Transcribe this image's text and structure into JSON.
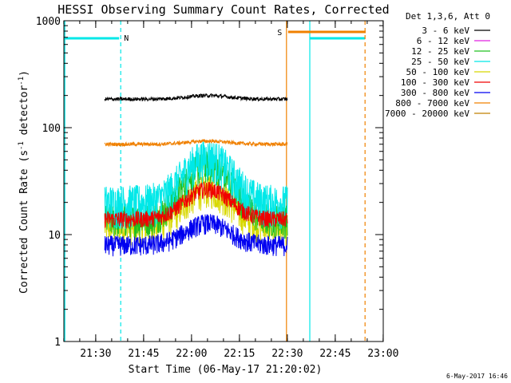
{
  "chart_data": {
    "type": "line",
    "title": "HESSI Observing Summary Count Rates, Corrected",
    "xlabel": "Start Time (06-May-17 21:20:02)",
    "ylabel_main": "Corrected Count Rate (s",
    "ylabel_sup1": "-1",
    "ylabel_mid": " detector",
    "ylabel_sup2": "-1",
    "ylabel_end": ")",
    "y_scale": "log",
    "ylim": [
      1,
      1000
    ],
    "y_ticks": [
      "1",
      "10",
      "100",
      "1000"
    ],
    "x_range_minutes": [
      0,
      100
    ],
    "x_ticks": [
      {
        "label": "21:30",
        "min": 9.97
      },
      {
        "label": "21:45",
        "min": 24.97
      },
      {
        "label": "22:00",
        "min": 39.97
      },
      {
        "label": "22:15",
        "min": 54.97
      },
      {
        "label": "22:30",
        "min": 69.97
      },
      {
        "label": "22:45",
        "min": 84.97
      },
      {
        "label": "23:00",
        "min": 99.97
      }
    ],
    "legend_title": "Det 1,3,6, Att 0",
    "legend_placement": "right",
    "series": [
      {
        "name": "3 - 6 keV",
        "color": "#000000",
        "start_min": 12.8,
        "end_min": 70.0,
        "base": 185,
        "bump": 1.08,
        "noise": 0.04
      },
      {
        "name": "6 - 12 keV",
        "color": "#e020e0",
        "start_min": 12.8,
        "end_min": 70.0,
        "base": 0,
        "bump": 1,
        "noise": 0
      },
      {
        "name": "12 - 25 keV",
        "color": "#20c020",
        "start_min": 12.8,
        "end_min": 70.0,
        "base": 14,
        "bump": 3.2,
        "noise": 0.35
      },
      {
        "name": "25 - 50 keV",
        "color": "#00e8e8",
        "start_min": 12.8,
        "end_min": 70.0,
        "base": 20,
        "bump": 2.7,
        "noise": 0.45
      },
      {
        "name": "50 - 100 keV",
        "color": "#d8d800",
        "start_min": 12.8,
        "end_min": 70.0,
        "base": 12,
        "bump": 2.2,
        "noise": 0.35
      },
      {
        "name": "100 - 300 keV",
        "color": "#f00000",
        "start_min": 12.8,
        "end_min": 70.0,
        "base": 14,
        "bump": 1.9,
        "noise": 0.18
      },
      {
        "name": "300 - 800 keV",
        "color": "#0000f0",
        "start_min": 12.8,
        "end_min": 70.0,
        "base": 8,
        "bump": 1.6,
        "noise": 0.22
      },
      {
        "name": "800 - 7000 keV",
        "color": "#f08000",
        "start_min": 12.8,
        "end_min": 70.0,
        "base": 70,
        "bump": 1.07,
        "noise": 0.04
      },
      {
        "name": "7000 - 20000 keV",
        "color": "#c08000",
        "start_min": 12.8,
        "end_min": 70.0,
        "base": 0,
        "bump": 1,
        "noise": 0
      }
    ],
    "annotations": [
      {
        "label": "N",
        "color": "#00e0e0"
      },
      {
        "label": "S",
        "color": "#f08000"
      }
    ],
    "night_color": "#00e8e8",
    "saa_color": "#f08000",
    "footer_date": "6-May-2017 16:46"
  }
}
